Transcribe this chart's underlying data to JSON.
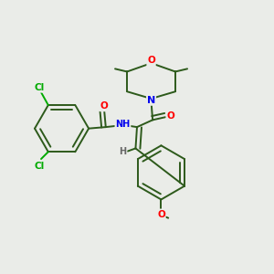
{
  "background_color": "#eaece8",
  "bond_color": "#2d5a1b",
  "atom_colors": {
    "O": "#ff0000",
    "N": "#0000ee",
    "Cl": "#00aa00",
    "H": "#666666",
    "C": "#2d5a1b"
  },
  "figsize": [
    3.0,
    3.0
  ],
  "dpi": 100
}
